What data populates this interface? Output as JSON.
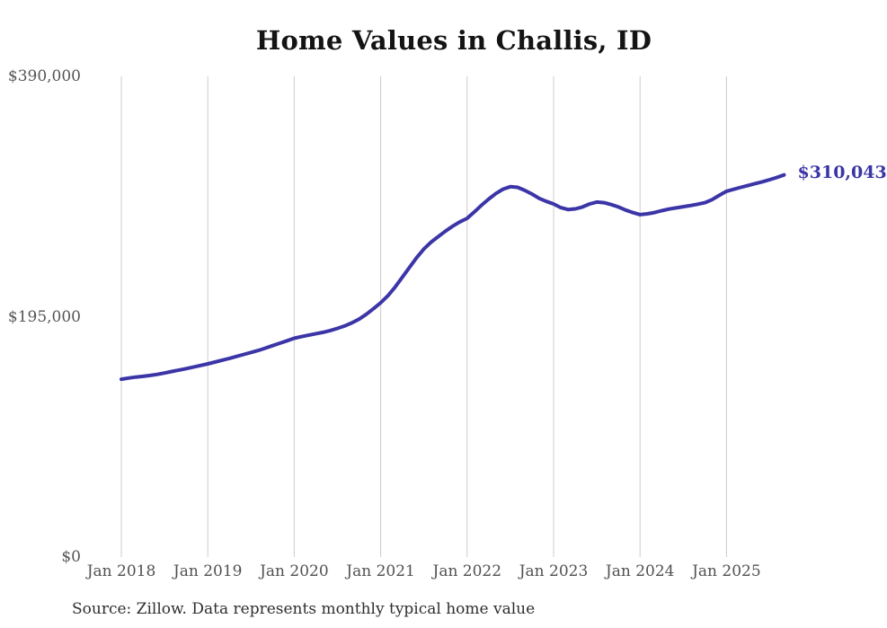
{
  "title": "Home Values in Challis, ID",
  "end_value_label": "$310,043",
  "source_note": "Source: Zillow. Data represents monthly typical home value",
  "colors": {
    "line": "#3b35a7",
    "grid": "#cccccc",
    "y_label": "#555555",
    "x_label": "#515151",
    "title": "#141414",
    "end_label": "#3b35a7",
    "source": "#2e2e2e",
    "background": "#ffffff"
  },
  "chart_data": {
    "type": "line",
    "title": "Home Values in Challis, ID",
    "xlabel": "",
    "ylabel": "",
    "ylim": [
      0,
      390000
    ],
    "grid": "vertical-only",
    "legend": "none",
    "frequency": "monthly",
    "x_start": "2018-01",
    "x_end": "2025-09",
    "x_tick_labels": [
      "Jan 2018",
      "Jan 2019",
      "Jan 2020",
      "Jan 2021",
      "Jan 2022",
      "Jan 2023",
      "Jan 2024",
      "Jan 2025"
    ],
    "y_ticks": [
      {
        "label": "$390,000",
        "value": 390000
      },
      {
        "label": "$195,000",
        "value": 195000
      },
      {
        "label": "$0",
        "value": 0
      }
    ],
    "end_annotation": {
      "text": "$310,043",
      "value": 310043
    },
    "series": [
      {
        "name": "Monthly typical home value",
        "values": [
          144300,
          145200,
          146000,
          146600,
          147300,
          148200,
          149300,
          150500,
          151700,
          152900,
          154100,
          155400,
          156700,
          158200,
          159700,
          161200,
          162800,
          164400,
          166000,
          167600,
          169500,
          171500,
          173500,
          175500,
          177500,
          178800,
          180000,
          181200,
          182300,
          183800,
          185500,
          187500,
          190000,
          193000,
          197000,
          201500,
          206300,
          212000,
          219000,
          227000,
          235000,
          243000,
          250000,
          255500,
          260000,
          264500,
          268500,
          272000,
          274800,
          280000,
          285500,
          290500,
          295000,
          298500,
          300500,
          300000,
          297500,
          294500,
          291000,
          288500,
          286500,
          283500,
          282000,
          282500,
          284000,
          286500,
          288000,
          287500,
          286000,
          284000,
          281500,
          279500,
          277800,
          278500,
          279500,
          281000,
          282300,
          283300,
          284200,
          285200,
          286300,
          287500,
          290000,
          293500,
          296800,
          298400,
          300000,
          301500,
          303000,
          304500,
          306200,
          308000,
          310043
        ]
      }
    ]
  }
}
